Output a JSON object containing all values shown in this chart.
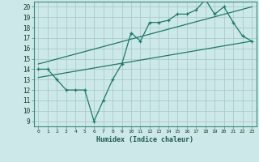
{
  "xlabel": "Humidex (Indice chaleur)",
  "background_color": "#cce8e8",
  "grid_color": "#aacccc",
  "line_color": "#1a7a6a",
  "xlim": [
    -0.5,
    23.5
  ],
  "ylim": [
    8.5,
    20.5
  ],
  "xticks": [
    0,
    1,
    2,
    3,
    4,
    5,
    6,
    7,
    8,
    9,
    10,
    11,
    12,
    13,
    14,
    15,
    16,
    17,
    18,
    19,
    20,
    21,
    22,
    23
  ],
  "yticks": [
    9,
    10,
    11,
    12,
    13,
    14,
    15,
    16,
    17,
    18,
    19,
    20
  ],
  "line1_x": [
    0,
    1,
    2,
    3,
    4,
    5,
    6,
    7,
    8,
    9,
    10,
    11,
    12,
    13,
    14,
    15,
    16,
    17,
    18,
    19,
    20,
    21,
    22,
    23
  ],
  "line1_y": [
    14.0,
    14.0,
    13.0,
    12.0,
    12.0,
    12.0,
    9.0,
    11.0,
    13.0,
    14.5,
    17.5,
    16.7,
    18.5,
    18.5,
    18.7,
    19.3,
    19.3,
    19.7,
    20.7,
    19.3,
    20.0,
    18.5,
    17.2,
    16.7
  ],
  "line2_x": [
    0,
    23
  ],
  "line2_y": [
    14.5,
    20.0
  ],
  "line3_x": [
    0,
    23
  ],
  "line3_y": [
    13.2,
    16.7
  ]
}
